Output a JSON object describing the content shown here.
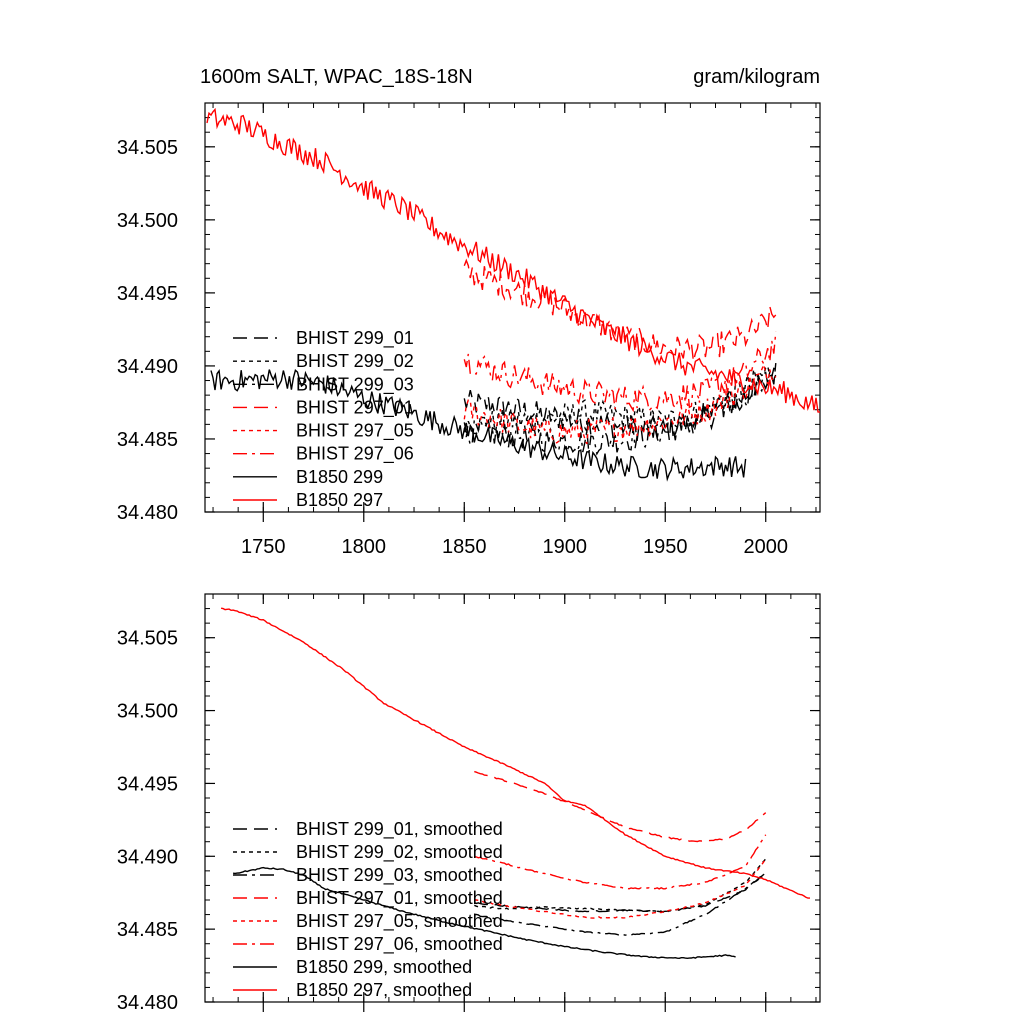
{
  "figure": {
    "title_left": "1600m SALT, WPAC_18S-18N",
    "title_right": "gram/kilogram"
  },
  "chart_data": [
    {
      "type": "line",
      "panel": "top",
      "title": "1600m SALT, WPAC_18S-18N",
      "units": "gram/kilogram",
      "xlim": [
        1721,
        2027
      ],
      "ylim": [
        34.48,
        34.508
      ],
      "x_ticks": [
        1750,
        1800,
        1850,
        1900,
        1950,
        2000
      ],
      "x_tick_labels": [
        "1750",
        "1800",
        "1850",
        "1900",
        "1950",
        "2000"
      ],
      "y_ticks": [
        34.48,
        34.485,
        34.49,
        34.495,
        34.5,
        34.505
      ],
      "y_tick_labels": [
        "34.480",
        "34.485",
        "34.490",
        "34.495",
        "34.500",
        "34.505"
      ],
      "legend": "lower-left",
      "noisy": true,
      "series": [
        {
          "name": "BHIST 299_01",
          "color": "#000000",
          "dash": "14,7",
          "x": [
            1850,
            1870,
            1890,
            1910,
            1930,
            1950,
            1970,
            1990,
            2005
          ],
          "y": [
            34.4875,
            34.4872,
            34.4866,
            34.4862,
            34.4858,
            34.4856,
            34.4864,
            34.488,
            34.4895
          ]
        },
        {
          "name": "BHIST 299_02",
          "color": "#000000",
          "dash": "4,4",
          "x": [
            1850,
            1870,
            1890,
            1910,
            1930,
            1950,
            1970,
            1990,
            2005
          ],
          "y": [
            34.486,
            34.4862,
            34.4864,
            34.4868,
            34.4865,
            34.4862,
            34.487,
            34.4885,
            34.49
          ]
        },
        {
          "name": "BHIST 299_03",
          "color": "#000000",
          "dash": "14,5,3,5",
          "x": [
            1850,
            1870,
            1890,
            1910,
            1930,
            1950,
            1970,
            1990,
            2005
          ],
          "y": [
            34.4855,
            34.4853,
            34.485,
            34.4848,
            34.485,
            34.4855,
            34.4865,
            34.488,
            34.4895
          ]
        },
        {
          "name": "BHIST 297_01",
          "color": "#ff0000",
          "dash": "14,7",
          "x": [
            1850,
            1870,
            1890,
            1910,
            1930,
            1950,
            1970,
            1990,
            2005
          ],
          "y": [
            34.4965,
            34.4955,
            34.4945,
            34.4932,
            34.492,
            34.4912,
            34.4912,
            34.492,
            34.4935
          ]
        },
        {
          "name": "BHIST 297_05",
          "color": "#ff0000",
          "dash": "4,4",
          "x": [
            1850,
            1870,
            1890,
            1910,
            1930,
            1950,
            1970,
            1990,
            2005
          ],
          "y": [
            34.487,
            34.4862,
            34.4855,
            34.4855,
            34.4858,
            34.4862,
            34.487,
            34.4885,
            34.49
          ]
        },
        {
          "name": "BHIST 297_06",
          "color": "#ff0000",
          "dash": "14,5,3,5",
          "x": [
            1850,
            1870,
            1890,
            1910,
            1930,
            1950,
            1970,
            1990,
            2005
          ],
          "y": [
            34.4905,
            34.4895,
            34.4888,
            34.4882,
            34.4878,
            34.4878,
            34.4882,
            34.4895,
            34.4915
          ]
        },
        {
          "name": "B1850 299",
          "color": "#000000",
          "dash": "",
          "x": [
            1724,
            1740,
            1760,
            1780,
            1800,
            1820,
            1840,
            1860,
            1880,
            1900,
            1920,
            1940,
            1960,
            1980,
            1990
          ],
          "y": [
            34.489,
            34.489,
            34.4892,
            34.4888,
            34.4878,
            34.487,
            34.486,
            34.4852,
            34.4845,
            34.4838,
            34.4833,
            34.483,
            34.483,
            34.4832,
            34.483
          ]
        },
        {
          "name": "B1850 297",
          "color": "#ff0000",
          "dash": "",
          "x": [
            1722,
            1740,
            1760,
            1780,
            1800,
            1820,
            1840,
            1860,
            1880,
            1900,
            1920,
            1940,
            1960,
            1980,
            2000,
            2010,
            2027
          ],
          "y": [
            34.507,
            34.5065,
            34.5052,
            34.504,
            34.5022,
            34.5008,
            34.499,
            34.4975,
            34.496,
            34.4942,
            34.4925,
            34.4912,
            34.49,
            34.4893,
            34.4885,
            34.4882,
            34.487
          ]
        }
      ]
    },
    {
      "type": "line",
      "panel": "bottom",
      "xlim": [
        1721,
        2027
      ],
      "ylim": [
        34.48,
        34.508
      ],
      "x_ticks": [
        1750,
        1800,
        1850,
        1900,
        1950,
        2000
      ],
      "y_ticks": [
        34.48,
        34.485,
        34.49,
        34.495,
        34.5,
        34.505
      ],
      "y_tick_labels": [
        "34.480",
        "34.485",
        "34.490",
        "34.495",
        "34.500",
        "34.505"
      ],
      "legend": "lower-left",
      "noisy": false,
      "series": [
        {
          "name": "BHIST 299_01, smoothed",
          "color": "#000000",
          "dash": "14,7",
          "x": [
            1855,
            1870,
            1890,
            1910,
            1930,
            1950,
            1970,
            1990,
            2000
          ],
          "y": [
            34.4868,
            34.4866,
            34.4864,
            34.4862,
            34.4863,
            34.4862,
            34.4866,
            34.4877,
            34.4889
          ]
        },
        {
          "name": "BHIST 299_02, smoothed",
          "color": "#000000",
          "dash": "4,4",
          "x": [
            1855,
            1870,
            1890,
            1910,
            1930,
            1950,
            1970,
            1990,
            2000
          ],
          "y": [
            34.4866,
            34.4864,
            34.4865,
            34.4864,
            34.4863,
            34.4862,
            34.4867,
            34.4882,
            34.4898
          ]
        },
        {
          "name": "BHIST 299_03, smoothed",
          "color": "#000000",
          "dash": "14,5,3,5",
          "x": [
            1855,
            1870,
            1890,
            1910,
            1930,
            1950,
            1970,
            1990,
            2000
          ],
          "y": [
            34.486,
            34.4856,
            34.4852,
            34.4848,
            34.4846,
            34.4848,
            34.486,
            34.4878,
            34.4888
          ]
        },
        {
          "name": "BHIST 297_01, smoothed",
          "color": "#ff0000",
          "dash": "14,7",
          "x": [
            1855,
            1870,
            1890,
            1910,
            1930,
            1950,
            1965,
            1980,
            1990,
            2000
          ],
          "y": [
            34.4958,
            34.4952,
            34.4943,
            34.4932,
            34.492,
            34.4913,
            34.491,
            34.4912,
            34.4918,
            34.493
          ]
        },
        {
          "name": "BHIST 297_05, smoothed",
          "color": "#ff0000",
          "dash": "4,4",
          "x": [
            1855,
            1870,
            1890,
            1910,
            1930,
            1950,
            1970,
            1990,
            2000
          ],
          "y": [
            34.487,
            34.4866,
            34.4862,
            34.4858,
            34.4858,
            34.4862,
            34.4868,
            34.488,
            34.4898
          ]
        },
        {
          "name": "BHIST 297_06, smoothed",
          "color": "#ff0000",
          "dash": "14,5,3,5",
          "x": [
            1855,
            1870,
            1890,
            1910,
            1930,
            1950,
            1970,
            1990,
            2000
          ],
          "y": [
            34.49,
            34.4895,
            34.4888,
            34.4882,
            34.4878,
            34.4878,
            34.4882,
            34.4893,
            34.4915
          ]
        },
        {
          "name": "B1850 299, smoothed",
          "color": "#000000",
          "dash": "",
          "x": [
            1735,
            1750,
            1760,
            1770,
            1780,
            1800,
            1820,
            1840,
            1860,
            1880,
            1900,
            1920,
            1940,
            1960,
            1980,
            1985
          ],
          "y": [
            34.4888,
            34.4892,
            34.4891,
            34.4887,
            34.4878,
            34.487,
            34.4862,
            34.4855,
            34.4849,
            34.4843,
            34.4838,
            34.4834,
            34.4831,
            34.483,
            34.4832,
            34.4831
          ]
        },
        {
          "name": "B1850 297, smoothed",
          "color": "#ff0000",
          "dash": "",
          "x": [
            1729,
            1735,
            1750,
            1770,
            1790,
            1810,
            1830,
            1850,
            1870,
            1890,
            1900,
            1910,
            1930,
            1950,
            1970,
            1990,
            2000,
            2010,
            2022
          ],
          "y": [
            34.507,
            34.5069,
            34.5062,
            34.5047,
            34.5028,
            34.5005,
            34.499,
            34.4975,
            34.4963,
            34.495,
            34.4938,
            34.4935,
            34.4915,
            34.49,
            34.4892,
            34.4888,
            34.4884,
            34.4878,
            34.4871
          ]
        }
      ]
    }
  ]
}
